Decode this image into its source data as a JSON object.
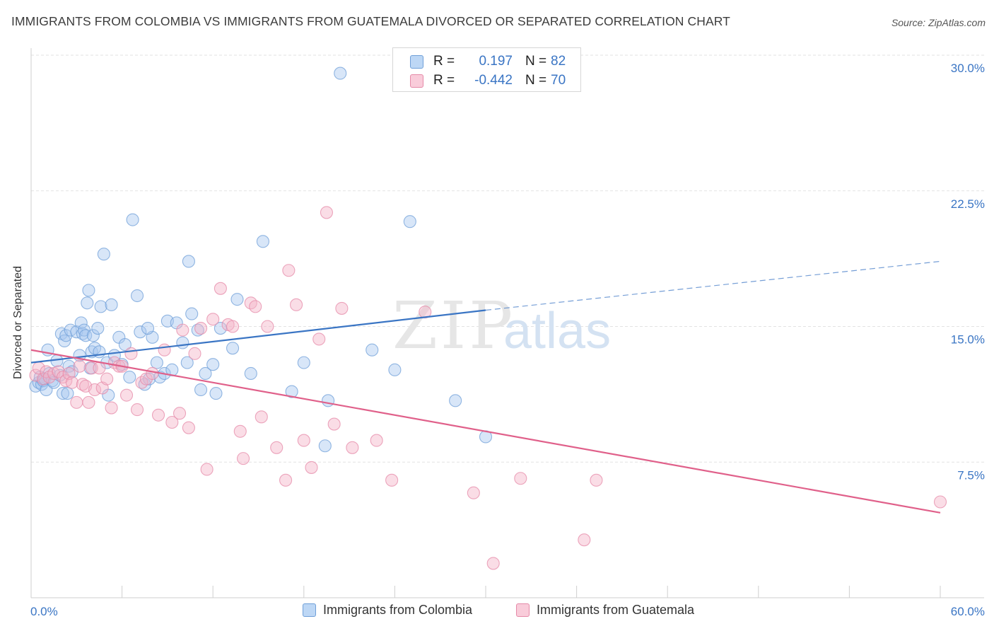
{
  "title": "IMMIGRANTS FROM COLOMBIA VS IMMIGRANTS FROM GUATEMALA DIVORCED OR SEPARATED CORRELATION CHART",
  "source": "Source: ZipAtlas.com",
  "watermark": {
    "zip": "ZIP",
    "atlas": "atlas"
  },
  "legend": {
    "rows": [
      {
        "r_label": "R =",
        "r_value": "0.197",
        "n_label": "N =",
        "n_value": "82"
      },
      {
        "r_label": "R =",
        "r_value": "-0.442",
        "n_label": "N =",
        "n_value": "70"
      }
    ]
  },
  "colors": {
    "blue": "#3a75c4",
    "blue_fill": "#a8c8f0",
    "pink": "#e0608a",
    "pink_fill": "#f4b4c8",
    "grid": "#e2e2e2",
    "tick_text": "#3a75c4"
  },
  "chart_data": {
    "type": "scatter",
    "title": "IMMIGRANTS FROM COLOMBIA VS IMMIGRANTS FROM GUATEMALA DIVORCED OR SEPARATED CORRELATION CHART",
    "xlabel": "",
    "ylabel": "Divorced or Separated",
    "xlim": [
      0,
      60
    ],
    "ylim": [
      0,
      30
    ],
    "x_tick_labels": [
      "0.0%",
      "60.0%"
    ],
    "y_ticks": [
      7.5,
      15.0,
      22.5,
      30.0
    ],
    "y_tick_labels": [
      "7.5%",
      "15.0%",
      "22.5%",
      "30.0%"
    ],
    "grid": true,
    "legend_position": "top-center",
    "series": [
      {
        "name": "Immigrants from Colombia",
        "color": "#3a75c4",
        "trend": {
          "x": [
            0,
            30
          ],
          "y": [
            13.0,
            15.9
          ],
          "dashed_to": [
            60,
            18.6
          ]
        },
        "points": [
          [
            0.3,
            11.7
          ],
          [
            0.5,
            11.9
          ],
          [
            0.6,
            12.2
          ],
          [
            0.7,
            11.8
          ],
          [
            0.8,
            12.0
          ],
          [
            0.9,
            12.1
          ],
          [
            1.0,
            11.5
          ],
          [
            1.1,
            13.7
          ],
          [
            1.2,
            12.4
          ],
          [
            1.4,
            12.0
          ],
          [
            1.5,
            11.9
          ],
          [
            1.7,
            13.1
          ],
          [
            1.9,
            12.3
          ],
          [
            2.0,
            14.6
          ],
          [
            2.1,
            11.3
          ],
          [
            2.2,
            14.2
          ],
          [
            2.3,
            14.5
          ],
          [
            2.4,
            11.3
          ],
          [
            2.5,
            12.8
          ],
          [
            2.6,
            14.8
          ],
          [
            2.7,
            12.5
          ],
          [
            3.0,
            14.7
          ],
          [
            3.2,
            13.4
          ],
          [
            3.3,
            15.2
          ],
          [
            3.4,
            14.6
          ],
          [
            3.5,
            14.8
          ],
          [
            3.6,
            14.5
          ],
          [
            3.7,
            16.3
          ],
          [
            3.8,
            17.0
          ],
          [
            4.0,
            13.6
          ],
          [
            4.1,
            14.5
          ],
          [
            4.2,
            13.8
          ],
          [
            4.4,
            14.9
          ],
          [
            4.5,
            13.6
          ],
          [
            4.6,
            16.1
          ],
          [
            4.8,
            19.0
          ],
          [
            5.0,
            13.0
          ],
          [
            5.1,
            11.2
          ],
          [
            5.3,
            16.2
          ],
          [
            5.5,
            13.4
          ],
          [
            5.8,
            14.4
          ],
          [
            6.0,
            12.9
          ],
          [
            6.5,
            12.2
          ],
          [
            6.7,
            20.9
          ],
          [
            7.0,
            16.7
          ],
          [
            7.2,
            14.7
          ],
          [
            7.5,
            11.8
          ],
          [
            7.8,
            12.1
          ],
          [
            8.0,
            14.4
          ],
          [
            8.3,
            13.0
          ],
          [
            8.5,
            12.2
          ],
          [
            8.8,
            12.4
          ],
          [
            9.0,
            15.3
          ],
          [
            9.3,
            12.6
          ],
          [
            9.6,
            15.2
          ],
          [
            10.0,
            14.1
          ],
          [
            10.3,
            13.0
          ],
          [
            10.4,
            18.6
          ],
          [
            10.6,
            15.7
          ],
          [
            11.0,
            14.8
          ],
          [
            11.2,
            11.5
          ],
          [
            11.5,
            12.4
          ],
          [
            12.0,
            12.9
          ],
          [
            12.2,
            11.3
          ],
          [
            12.5,
            14.9
          ],
          [
            13.3,
            13.8
          ],
          [
            13.6,
            16.5
          ],
          [
            14.5,
            12.4
          ],
          [
            15.3,
            19.7
          ],
          [
            17.2,
            11.4
          ],
          [
            18.0,
            13.0
          ],
          [
            19.4,
            8.4
          ],
          [
            19.6,
            10.9
          ],
          [
            20.4,
            29.0
          ],
          [
            22.5,
            13.7
          ],
          [
            24.0,
            12.6
          ],
          [
            25.0,
            20.8
          ],
          [
            28.0,
            10.9
          ],
          [
            30.0,
            8.9
          ],
          [
            7.7,
            14.9
          ],
          [
            3.9,
            12.7
          ],
          [
            6.2,
            14.0
          ]
        ]
      },
      {
        "name": "Immigrants from Guatemala",
        "color": "#e0608a",
        "trend": {
          "x": [
            0,
            60
          ],
          "y": [
            13.7,
            4.7
          ]
        },
        "points": [
          [
            0.3,
            12.3
          ],
          [
            0.5,
            12.7
          ],
          [
            0.8,
            12.1
          ],
          [
            1.0,
            12.5
          ],
          [
            1.2,
            12.2
          ],
          [
            1.5,
            12.4
          ],
          [
            1.8,
            12.5
          ],
          [
            2.1,
            12.2
          ],
          [
            2.3,
            12.0
          ],
          [
            2.5,
            12.4
          ],
          [
            2.7,
            11.9
          ],
          [
            3.0,
            10.8
          ],
          [
            3.2,
            12.8
          ],
          [
            3.4,
            11.8
          ],
          [
            3.6,
            11.7
          ],
          [
            3.8,
            10.8
          ],
          [
            4.0,
            12.7
          ],
          [
            4.2,
            11.5
          ],
          [
            4.5,
            12.7
          ],
          [
            4.7,
            11.6
          ],
          [
            5.0,
            12.1
          ],
          [
            5.3,
            10.5
          ],
          [
            5.5,
            13.0
          ],
          [
            5.8,
            12.8
          ],
          [
            6.0,
            12.8
          ],
          [
            6.3,
            11.2
          ],
          [
            6.6,
            13.5
          ],
          [
            7.0,
            10.4
          ],
          [
            7.3,
            11.9
          ],
          [
            7.6,
            12.1
          ],
          [
            8.0,
            12.4
          ],
          [
            8.4,
            10.1
          ],
          [
            8.8,
            13.7
          ],
          [
            9.3,
            9.7
          ],
          [
            9.8,
            10.2
          ],
          [
            10.0,
            14.8
          ],
          [
            10.4,
            9.4
          ],
          [
            10.8,
            13.5
          ],
          [
            11.2,
            14.9
          ],
          [
            11.6,
            7.1
          ],
          [
            12.0,
            15.4
          ],
          [
            12.5,
            17.1
          ],
          [
            13.0,
            15.1
          ],
          [
            13.3,
            15.0
          ],
          [
            13.8,
            9.2
          ],
          [
            14.0,
            7.7
          ],
          [
            14.5,
            16.3
          ],
          [
            14.8,
            16.1
          ],
          [
            15.2,
            10.0
          ],
          [
            15.6,
            15.0
          ],
          [
            16.2,
            8.3
          ],
          [
            16.8,
            6.5
          ],
          [
            17.0,
            18.1
          ],
          [
            17.5,
            16.2
          ],
          [
            18.0,
            8.7
          ],
          [
            18.5,
            7.2
          ],
          [
            19.0,
            14.3
          ],
          [
            19.5,
            21.3
          ],
          [
            20.0,
            9.6
          ],
          [
            20.5,
            16.0
          ],
          [
            21.2,
            8.3
          ],
          [
            22.8,
            8.7
          ],
          [
            23.8,
            6.5
          ],
          [
            26.0,
            15.8
          ],
          [
            29.2,
            5.8
          ],
          [
            30.5,
            1.9
          ],
          [
            32.3,
            6.6
          ],
          [
            36.5,
            3.2
          ],
          [
            37.3,
            6.5
          ],
          [
            60.0,
            5.3
          ]
        ]
      }
    ]
  }
}
